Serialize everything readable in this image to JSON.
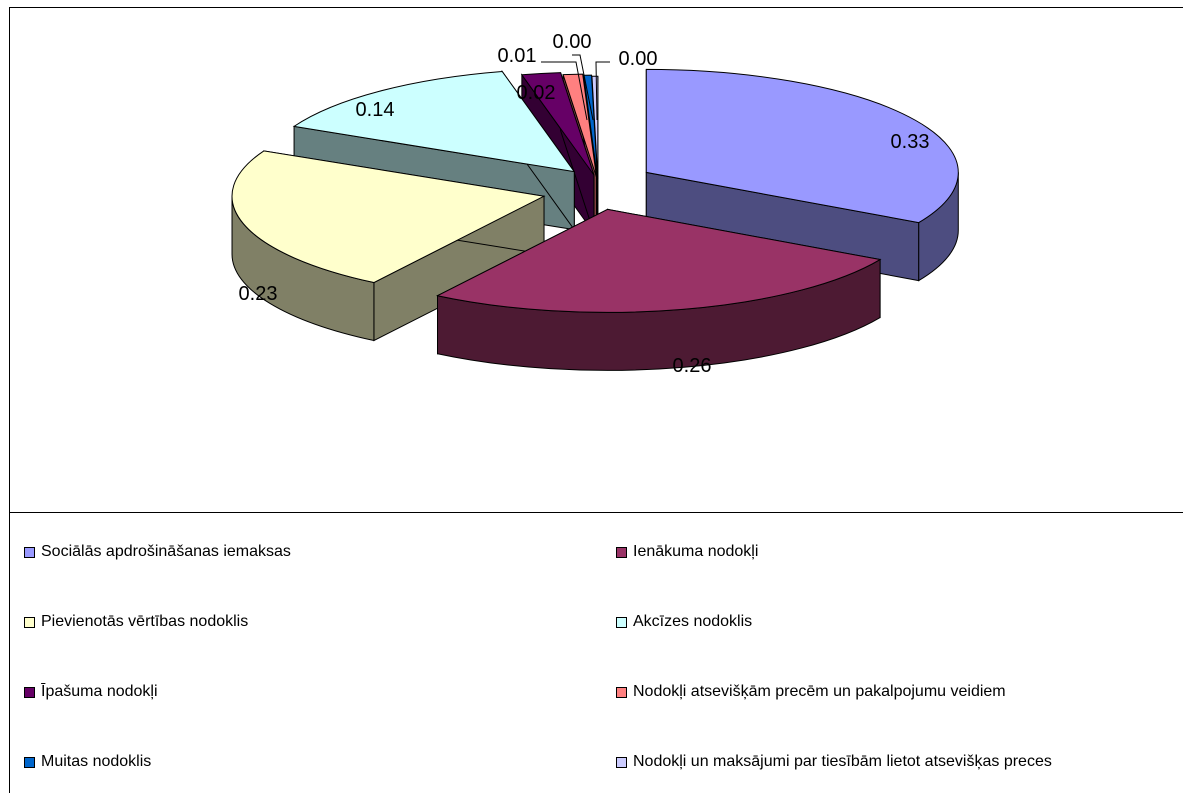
{
  "chart_data": {
    "type": "pie",
    "style": "3d-exploded",
    "title": "",
    "categories": [
      "Sociālās apdrošināšanas iemaksas",
      "Ienākuma nodokļi",
      "Pievienotās vērtības nodoklis",
      "Akcīzes nodoklis",
      "Īpašuma nodokļi",
      "Nodokļi atsevišķām precēm un  pakalpojumu veidiem",
      "Muitas nodoklis",
      "Nodokļi un maksājumi par tiesībām lietot atsevišķas preces"
    ],
    "values": [
      0.33,
      0.26,
      0.23,
      0.14,
      0.02,
      0.01,
      0.004,
      0.003
    ],
    "data_labels": [
      "0.33",
      "0.26",
      "0.23",
      "0.14",
      "0.02",
      "0.01",
      "0.00",
      "0.00"
    ],
    "colors": [
      "#9999ff",
      "#993366",
      "#ffffcc",
      "#ccffff",
      "#660066",
      "#ff8080",
      "#0066cc",
      "#ccccff"
    ],
    "legend_position": "bottom"
  }
}
